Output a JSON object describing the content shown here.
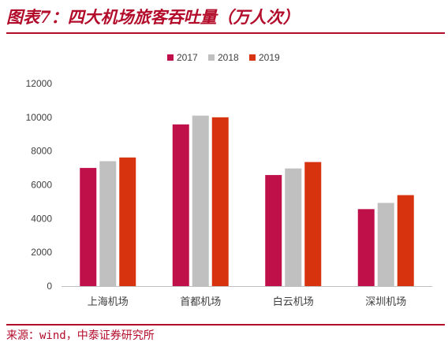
{
  "page": {
    "title": "图表7：四大机场旅客吞吐量（万人次）",
    "source": "来源：wind，中泰证券研究所",
    "accent_color": "#b30b2a"
  },
  "chart_data": {
    "type": "bar",
    "title": "",
    "xlabel": "",
    "ylabel": "",
    "categories": [
      "上海机场",
      "首都机场",
      "白云机场",
      "深圳机场"
    ],
    "series": [
      {
        "name": "2017",
        "color": "#c0104a",
        "values": [
          7000,
          9580,
          6580,
          4560
        ]
      },
      {
        "name": "2018",
        "color": "#c0c0c0",
        "values": [
          7400,
          10100,
          6970,
          4930
        ]
      },
      {
        "name": "2019",
        "color": "#d7330e",
        "values": [
          7620,
          10000,
          7350,
          5390
        ]
      }
    ],
    "ylim": [
      0,
      12000
    ],
    "yticks": [
      "0",
      "2000",
      "4000",
      "6000",
      "8000",
      "10000",
      "12000"
    ],
    "grid": false,
    "legend_position": "top-center"
  }
}
